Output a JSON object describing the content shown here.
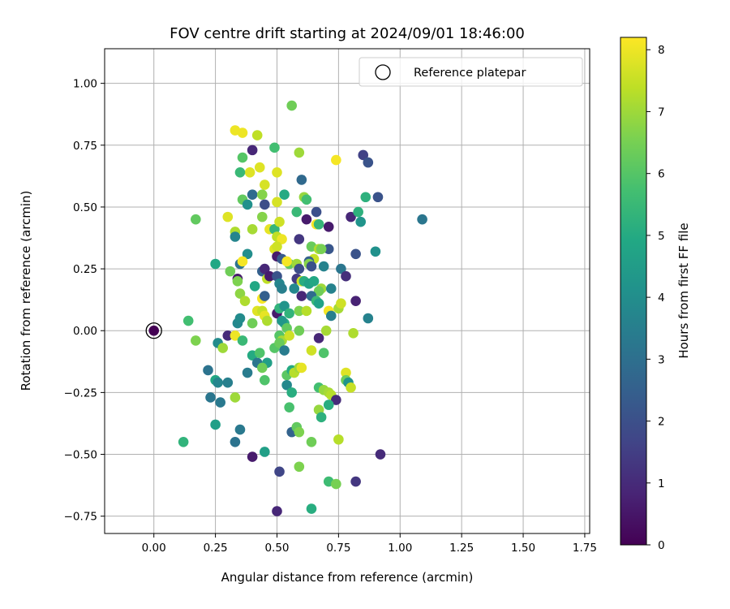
{
  "chart_data": {
    "type": "scatter",
    "title": "FOV centre drift starting at 2024/09/01 18:46:00",
    "xlabel": "Angular distance from reference (arcmin)",
    "ylabel": "Rotation from reference (arcmin)",
    "xlim": [
      -0.2,
      1.77
    ],
    "ylim": [
      -0.82,
      1.14
    ],
    "xticks": [
      "0.00",
      "0.25",
      "0.50",
      "0.75",
      "1.00",
      "1.25",
      "1.50",
      "1.75"
    ],
    "yticks": [
      "−0.75",
      "−0.50",
      "−0.25",
      "0.00",
      "0.25",
      "0.50",
      "0.75",
      "1.00"
    ],
    "xtick_values": [
      0,
      0.25,
      0.5,
      0.75,
      1.0,
      1.25,
      1.5,
      1.75
    ],
    "ytick_values": [
      -0.75,
      -0.5,
      -0.25,
      0,
      0.25,
      0.5,
      0.75,
      1.0
    ],
    "grid": true,
    "legend": {
      "label": "Reference platepar",
      "position": "top-right"
    },
    "colorbar": {
      "label": "Hours from first FF file",
      "colormap": "viridis",
      "range": [
        0,
        8.2
      ],
      "ticks": [
        "0",
        "1",
        "2",
        "3",
        "4",
        "5",
        "6",
        "7",
        "8"
      ],
      "tick_values": [
        0,
        1,
        2,
        3,
        4,
        5,
        6,
        7,
        8
      ]
    },
    "reference_point": {
      "x": 0.0,
      "y": 0.0,
      "hours": 0.0
    },
    "points": [
      {
        "x": 0.56,
        "y": 0.91,
        "h": 6.4
      },
      {
        "x": 0.33,
        "y": 0.81,
        "h": 8.0
      },
      {
        "x": 0.36,
        "y": 0.8,
        "h": 8.0
      },
      {
        "x": 0.42,
        "y": 0.79,
        "h": 7.4
      },
      {
        "x": 0.4,
        "y": 0.73,
        "h": 0.9
      },
      {
        "x": 0.49,
        "y": 0.74,
        "h": 5.7
      },
      {
        "x": 0.59,
        "y": 0.72,
        "h": 7.0
      },
      {
        "x": 0.36,
        "y": 0.7,
        "h": 6.0
      },
      {
        "x": 0.74,
        "y": 0.69,
        "h": 8.1
      },
      {
        "x": 0.85,
        "y": 0.71,
        "h": 1.6
      },
      {
        "x": 0.87,
        "y": 0.68,
        "h": 2.1
      },
      {
        "x": 0.43,
        "y": 0.66,
        "h": 7.8
      },
      {
        "x": 0.39,
        "y": 0.64,
        "h": 7.8
      },
      {
        "x": 0.35,
        "y": 0.64,
        "h": 5.5
      },
      {
        "x": 0.5,
        "y": 0.64,
        "h": 7.8
      },
      {
        "x": 0.6,
        "y": 0.61,
        "h": 2.8
      },
      {
        "x": 0.45,
        "y": 0.59,
        "h": 7.7
      },
      {
        "x": 0.4,
        "y": 0.55,
        "h": 2.9
      },
      {
        "x": 0.44,
        "y": 0.55,
        "h": 6.7
      },
      {
        "x": 0.53,
        "y": 0.55,
        "h": 5.0
      },
      {
        "x": 0.36,
        "y": 0.53,
        "h": 6.2
      },
      {
        "x": 0.5,
        "y": 0.52,
        "h": 7.7
      },
      {
        "x": 0.61,
        "y": 0.54,
        "h": 6.9
      },
      {
        "x": 0.62,
        "y": 0.53,
        "h": 5.7
      },
      {
        "x": 0.91,
        "y": 0.54,
        "h": 2.1
      },
      {
        "x": 0.86,
        "y": 0.54,
        "h": 5.2
      },
      {
        "x": 0.38,
        "y": 0.51,
        "h": 4.1
      },
      {
        "x": 0.45,
        "y": 0.51,
        "h": 1.9
      },
      {
        "x": 0.3,
        "y": 0.46,
        "h": 7.8
      },
      {
        "x": 0.17,
        "y": 0.45,
        "h": 6.2
      },
      {
        "x": 0.44,
        "y": 0.46,
        "h": 6.7
      },
      {
        "x": 0.58,
        "y": 0.48,
        "h": 5.5
      },
      {
        "x": 0.62,
        "y": 0.45,
        "h": 0.6
      },
      {
        "x": 0.66,
        "y": 0.48,
        "h": 2.0
      },
      {
        "x": 0.8,
        "y": 0.46,
        "h": 0.9
      },
      {
        "x": 0.83,
        "y": 0.48,
        "h": 5.2
      },
      {
        "x": 0.84,
        "y": 0.44,
        "h": 4.2
      },
      {
        "x": 1.09,
        "y": 0.45,
        "h": 3.2
      },
      {
        "x": 0.33,
        "y": 0.4,
        "h": 7.2
      },
      {
        "x": 0.33,
        "y": 0.38,
        "h": 3.7
      },
      {
        "x": 0.4,
        "y": 0.41,
        "h": 7.1
      },
      {
        "x": 0.47,
        "y": 0.41,
        "h": 7.9
      },
      {
        "x": 0.49,
        "y": 0.41,
        "h": 5.4
      },
      {
        "x": 0.51,
        "y": 0.44,
        "h": 7.6
      },
      {
        "x": 0.5,
        "y": 0.38,
        "h": 7.4
      },
      {
        "x": 0.52,
        "y": 0.37,
        "h": 8.0
      },
      {
        "x": 0.59,
        "y": 0.37,
        "h": 1.3
      },
      {
        "x": 0.66,
        "y": 0.43,
        "h": 8.1
      },
      {
        "x": 0.67,
        "y": 0.43,
        "h": 5.4
      },
      {
        "x": 0.71,
        "y": 0.42,
        "h": 0.6
      },
      {
        "x": 0.49,
        "y": 0.33,
        "h": 7.8
      },
      {
        "x": 0.5,
        "y": 0.34,
        "h": 7.6
      },
      {
        "x": 0.38,
        "y": 0.31,
        "h": 4.0
      },
      {
        "x": 0.55,
        "y": 0.27,
        "h": 6.2
      },
      {
        "x": 0.64,
        "y": 0.34,
        "h": 6.3
      },
      {
        "x": 0.65,
        "y": 0.29,
        "h": 7.5
      },
      {
        "x": 0.63,
        "y": 0.28,
        "h": 2.5
      },
      {
        "x": 0.67,
        "y": 0.33,
        "h": 7.2
      },
      {
        "x": 0.71,
        "y": 0.33,
        "h": 2.2
      },
      {
        "x": 0.68,
        "y": 0.33,
        "h": 6.5
      },
      {
        "x": 0.82,
        "y": 0.31,
        "h": 2.1
      },
      {
        "x": 0.9,
        "y": 0.32,
        "h": 4.1
      },
      {
        "x": 0.25,
        "y": 0.27,
        "h": 4.9
      },
      {
        "x": 0.35,
        "y": 0.27,
        "h": 3.1
      },
      {
        "x": 0.36,
        "y": 0.28,
        "h": 8.1
      },
      {
        "x": 0.44,
        "y": 0.24,
        "h": 2.5
      },
      {
        "x": 0.45,
        "y": 0.25,
        "h": 0.9
      },
      {
        "x": 0.5,
        "y": 0.3,
        "h": 0.6
      },
      {
        "x": 0.52,
        "y": 0.29,
        "h": 2.3
      },
      {
        "x": 0.54,
        "y": 0.28,
        "h": 8.1
      },
      {
        "x": 0.58,
        "y": 0.27,
        "h": 7.0
      },
      {
        "x": 0.59,
        "y": 0.25,
        "h": 1.9
      },
      {
        "x": 0.63,
        "y": 0.27,
        "h": 6.7
      },
      {
        "x": 0.64,
        "y": 0.26,
        "h": 2.0
      },
      {
        "x": 0.69,
        "y": 0.26,
        "h": 3.6
      },
      {
        "x": 0.76,
        "y": 0.25,
        "h": 3.2
      },
      {
        "x": 0.78,
        "y": 0.22,
        "h": 1.1
      },
      {
        "x": 0.31,
        "y": 0.24,
        "h": 6.4
      },
      {
        "x": 0.34,
        "y": 0.21,
        "h": 0.6
      },
      {
        "x": 0.34,
        "y": 0.2,
        "h": 6.6
      },
      {
        "x": 0.46,
        "y": 0.21,
        "h": 7.4
      },
      {
        "x": 0.47,
        "y": 0.22,
        "h": 0.6
      },
      {
        "x": 0.5,
        "y": 0.22,
        "h": 2.1
      },
      {
        "x": 0.51,
        "y": 0.19,
        "h": 3.7
      },
      {
        "x": 0.52,
        "y": 0.17,
        "h": 3.5
      },
      {
        "x": 0.58,
        "y": 0.21,
        "h": 1.4
      },
      {
        "x": 0.6,
        "y": 0.2,
        "h": 7.6
      },
      {
        "x": 0.61,
        "y": 0.2,
        "h": 5.1
      },
      {
        "x": 0.63,
        "y": 0.19,
        "h": 4.7
      },
      {
        "x": 0.65,
        "y": 0.2,
        "h": 4.9
      },
      {
        "x": 0.68,
        "y": 0.17,
        "h": 7.0
      },
      {
        "x": 0.67,
        "y": 0.16,
        "h": 6.4
      },
      {
        "x": 0.72,
        "y": 0.17,
        "h": 3.6
      },
      {
        "x": 0.82,
        "y": 0.12,
        "h": 0.8
      },
      {
        "x": 0.41,
        "y": 0.18,
        "h": 4.9
      },
      {
        "x": 0.35,
        "y": 0.15,
        "h": 6.8
      },
      {
        "x": 0.37,
        "y": 0.12,
        "h": 7.2
      },
      {
        "x": 0.44,
        "y": 0.13,
        "h": 8.1
      },
      {
        "x": 0.45,
        "y": 0.14,
        "h": 2.5
      },
      {
        "x": 0.57,
        "y": 0.17,
        "h": 3.8
      },
      {
        "x": 0.6,
        "y": 0.14,
        "h": 0.9
      },
      {
        "x": 0.64,
        "y": 0.14,
        "h": 2.9
      },
      {
        "x": 0.66,
        "y": 0.12,
        "h": 5.5
      },
      {
        "x": 0.67,
        "y": 0.11,
        "h": 4.7
      },
      {
        "x": 0.75,
        "y": 0.09,
        "h": 7.1
      },
      {
        "x": 0.76,
        "y": 0.11,
        "h": 7.6
      },
      {
        "x": 0.42,
        "y": 0.08,
        "h": 7.8
      },
      {
        "x": 0.44,
        "y": 0.08,
        "h": 7.5
      },
      {
        "x": 0.45,
        "y": 0.06,
        "h": 7.9
      },
      {
        "x": 0.46,
        "y": 0.04,
        "h": 7.2
      },
      {
        "x": 0.5,
        "y": 0.07,
        "h": 0.6
      },
      {
        "x": 0.51,
        "y": 0.09,
        "h": 5.3
      },
      {
        "x": 0.53,
        "y": 0.1,
        "h": 4.2
      },
      {
        "x": 0.55,
        "y": 0.07,
        "h": 5.3
      },
      {
        "x": 0.59,
        "y": 0.08,
        "h": 6.6
      },
      {
        "x": 0.62,
        "y": 0.08,
        "h": 7.3
      },
      {
        "x": 0.71,
        "y": 0.08,
        "h": 8.1
      },
      {
        "x": 0.72,
        "y": 0.06,
        "h": 3.5
      },
      {
        "x": 0.14,
        "y": 0.04,
        "h": 5.7
      },
      {
        "x": 0.34,
        "y": 0.03,
        "h": 3.8
      },
      {
        "x": 0.35,
        "y": 0.05,
        "h": 3.9
      },
      {
        "x": 0.4,
        "y": 0.03,
        "h": 6.4
      },
      {
        "x": 0.53,
        "y": 0.03,
        "h": 5.1
      },
      {
        "x": 0.52,
        "y": 0.04,
        "h": 4.3
      },
      {
        "x": 0.54,
        "y": 0.01,
        "h": 6.2
      },
      {
        "x": 0.59,
        "y": 0.0,
        "h": 6.4
      },
      {
        "x": 0.7,
        "y": 0.0,
        "h": 7.1
      },
      {
        "x": 0.87,
        "y": 0.05,
        "h": 3.6
      },
      {
        "x": 0.3,
        "y": -0.02,
        "h": 1.0
      },
      {
        "x": 0.33,
        "y": -0.02,
        "h": 8.0
      },
      {
        "x": 0.17,
        "y": -0.04,
        "h": 6.6
      },
      {
        "x": 0.36,
        "y": -0.04,
        "h": 5.5
      },
      {
        "x": 0.51,
        "y": -0.02,
        "h": 6.0
      },
      {
        "x": 0.52,
        "y": -0.04,
        "h": 7.1
      },
      {
        "x": 0.55,
        "y": -0.02,
        "h": 7.6
      },
      {
        "x": 0.67,
        "y": -0.03,
        "h": 0.9
      },
      {
        "x": 0.81,
        "y": -0.01,
        "h": 7.2
      },
      {
        "x": 0.26,
        "y": -0.05,
        "h": 3.9
      },
      {
        "x": 0.28,
        "y": -0.07,
        "h": 7.0
      },
      {
        "x": 0.49,
        "y": -0.07,
        "h": 6.0
      },
      {
        "x": 0.51,
        "y": -0.05,
        "h": 6.3
      },
      {
        "x": 0.53,
        "y": -0.08,
        "h": 3.4
      },
      {
        "x": 0.64,
        "y": -0.08,
        "h": 7.6
      },
      {
        "x": 0.69,
        "y": -0.09,
        "h": 5.9
      },
      {
        "x": 0.4,
        "y": -0.1,
        "h": 5.0
      },
      {
        "x": 0.42,
        "y": -0.13,
        "h": 3.2
      },
      {
        "x": 0.43,
        "y": -0.09,
        "h": 5.9
      },
      {
        "x": 0.46,
        "y": -0.13,
        "h": 4.6
      },
      {
        "x": 0.38,
        "y": -0.17,
        "h": 3.4
      },
      {
        "x": 0.44,
        "y": -0.15,
        "h": 6.4
      },
      {
        "x": 0.54,
        "y": -0.18,
        "h": 6.1
      },
      {
        "x": 0.56,
        "y": -0.16,
        "h": 5.0
      },
      {
        "x": 0.57,
        "y": -0.17,
        "h": 7.3
      },
      {
        "x": 0.59,
        "y": -0.15,
        "h": 7.0
      },
      {
        "x": 0.6,
        "y": -0.15,
        "h": 7.9
      },
      {
        "x": 0.22,
        "y": -0.16,
        "h": 3.1
      },
      {
        "x": 0.25,
        "y": -0.2,
        "h": 4.9
      },
      {
        "x": 0.26,
        "y": -0.21,
        "h": 3.7
      },
      {
        "x": 0.3,
        "y": -0.21,
        "h": 3.5
      },
      {
        "x": 0.45,
        "y": -0.2,
        "h": 5.9
      },
      {
        "x": 0.54,
        "y": -0.22,
        "h": 3.8
      },
      {
        "x": 0.56,
        "y": -0.25,
        "h": 5.1
      },
      {
        "x": 0.67,
        "y": -0.23,
        "h": 5.7
      },
      {
        "x": 0.69,
        "y": -0.24,
        "h": 6.9
      },
      {
        "x": 0.71,
        "y": -0.25,
        "h": 7.1
      },
      {
        "x": 0.72,
        "y": -0.26,
        "h": 7.3
      },
      {
        "x": 0.74,
        "y": -0.28,
        "h": 1.0
      },
      {
        "x": 0.78,
        "y": -0.17,
        "h": 7.8
      },
      {
        "x": 0.78,
        "y": -0.2,
        "h": 6.4
      },
      {
        "x": 0.79,
        "y": -0.21,
        "h": 4.2
      },
      {
        "x": 0.8,
        "y": -0.23,
        "h": 7.5
      },
      {
        "x": 0.23,
        "y": -0.27,
        "h": 3.2
      },
      {
        "x": 0.27,
        "y": -0.29,
        "h": 3.3
      },
      {
        "x": 0.33,
        "y": -0.27,
        "h": 7.0
      },
      {
        "x": 0.55,
        "y": -0.31,
        "h": 5.8
      },
      {
        "x": 0.67,
        "y": -0.32,
        "h": 6.9
      },
      {
        "x": 0.68,
        "y": -0.35,
        "h": 5.2
      },
      {
        "x": 0.71,
        "y": -0.3,
        "h": 5.1
      },
      {
        "x": 0.25,
        "y": -0.38,
        "h": 4.6
      },
      {
        "x": 0.35,
        "y": -0.4,
        "h": 3.3
      },
      {
        "x": 0.33,
        "y": -0.45,
        "h": 3.1
      },
      {
        "x": 0.12,
        "y": -0.45,
        "h": 5.3
      },
      {
        "x": 0.45,
        "y": -0.49,
        "h": 4.6
      },
      {
        "x": 0.56,
        "y": -0.41,
        "h": 2.6
      },
      {
        "x": 0.58,
        "y": -0.39,
        "h": 6.2
      },
      {
        "x": 0.59,
        "y": -0.41,
        "h": 6.6
      },
      {
        "x": 0.64,
        "y": -0.45,
        "h": 6.4
      },
      {
        "x": 0.75,
        "y": -0.44,
        "h": 7.3
      },
      {
        "x": 0.4,
        "y": -0.51,
        "h": 0.6
      },
      {
        "x": 0.92,
        "y": -0.5,
        "h": 1.0
      },
      {
        "x": 0.51,
        "y": -0.57,
        "h": 1.7
      },
      {
        "x": 0.59,
        "y": -0.55,
        "h": 6.6
      },
      {
        "x": 0.71,
        "y": -0.61,
        "h": 5.6
      },
      {
        "x": 0.74,
        "y": -0.62,
        "h": 6.5
      },
      {
        "x": 0.82,
        "y": -0.61,
        "h": 1.3
      },
      {
        "x": 0.5,
        "y": -0.73,
        "h": 0.9
      },
      {
        "x": 0.64,
        "y": -0.72,
        "h": 5.1
      }
    ]
  }
}
